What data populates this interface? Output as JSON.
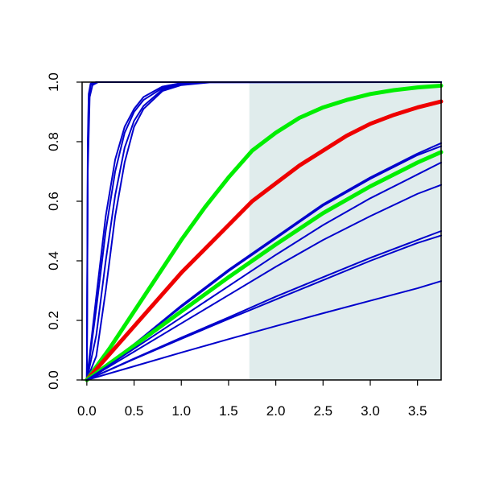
{
  "chart_data": {
    "type": "line",
    "title": "",
    "xlabel": "",
    "ylabel": "",
    "xlim": [
      -0.05,
      3.75
    ],
    "ylim": [
      0.0,
      1.0
    ],
    "x_ticks": [
      "0.0",
      "0.5",
      "1.0",
      "1.5",
      "2.0",
      "2.5",
      "3.0",
      "3.5"
    ],
    "y_ticks": [
      "0.0",
      "0.2",
      "0.4",
      "0.6",
      "0.8",
      "1.0"
    ],
    "grid": false,
    "legend": "none",
    "shaded_region": {
      "x_from": 1.72,
      "x_to": 3.75,
      "color": "#e0ecec"
    },
    "series": [
      {
        "color": "#0000cc",
        "width": 2,
        "points": [
          [
            0,
            0
          ],
          [
            0.01,
            0.8
          ],
          [
            0.02,
            0.96
          ],
          [
            0.04,
            0.995
          ],
          [
            0.1,
            1.0
          ],
          [
            3.75,
            1.0
          ]
        ]
      },
      {
        "color": "#0000cc",
        "width": 2,
        "points": [
          [
            0,
            0
          ],
          [
            0.01,
            0.75
          ],
          [
            0.02,
            0.94
          ],
          [
            0.04,
            0.99
          ],
          [
            0.1,
            1.0
          ],
          [
            3.75,
            1.0
          ]
        ]
      },
      {
        "color": "#0000cc",
        "width": 2,
        "points": [
          [
            0,
            0
          ],
          [
            0.01,
            0.7
          ],
          [
            0.03,
            0.95
          ],
          [
            0.06,
            0.99
          ],
          [
            0.12,
            1.0
          ],
          [
            3.75,
            1.0
          ]
        ]
      },
      {
        "color": "#0000cc",
        "width": 2,
        "points": [
          [
            0,
            0
          ],
          [
            0.1,
            0.28
          ],
          [
            0.2,
            0.55
          ],
          [
            0.3,
            0.74
          ],
          [
            0.4,
            0.85
          ],
          [
            0.5,
            0.91
          ],
          [
            0.6,
            0.95
          ],
          [
            0.8,
            0.985
          ],
          [
            1.0,
            0.997
          ],
          [
            1.2,
            1.0
          ],
          [
            3.75,
            1.0
          ]
        ]
      },
      {
        "color": "#0000cc",
        "width": 2,
        "points": [
          [
            0,
            0
          ],
          [
            0.1,
            0.24
          ],
          [
            0.2,
            0.5
          ],
          [
            0.3,
            0.7
          ],
          [
            0.4,
            0.83
          ],
          [
            0.5,
            0.9
          ],
          [
            0.6,
            0.94
          ],
          [
            0.8,
            0.98
          ],
          [
            1.0,
            0.995
          ],
          [
            1.3,
            1.0
          ],
          [
            3.75,
            1.0
          ]
        ]
      },
      {
        "color": "#0000cc",
        "width": 2,
        "points": [
          [
            0,
            0
          ],
          [
            0.1,
            0.15
          ],
          [
            0.2,
            0.4
          ],
          [
            0.3,
            0.62
          ],
          [
            0.4,
            0.78
          ],
          [
            0.5,
            0.87
          ],
          [
            0.6,
            0.92
          ],
          [
            0.8,
            0.975
          ],
          [
            1.0,
            0.993
          ],
          [
            1.3,
            1.0
          ],
          [
            3.75,
            1.0
          ]
        ]
      },
      {
        "color": "#0000cc",
        "width": 2,
        "points": [
          [
            0,
            0
          ],
          [
            0.1,
            0.08
          ],
          [
            0.2,
            0.3
          ],
          [
            0.3,
            0.55
          ],
          [
            0.4,
            0.73
          ],
          [
            0.5,
            0.85
          ],
          [
            0.6,
            0.91
          ],
          [
            0.8,
            0.97
          ],
          [
            1.0,
            0.99
          ],
          [
            1.3,
            0.999
          ],
          [
            3.75,
            1.0
          ]
        ]
      },
      {
        "color": "#00ee00",
        "width": 5,
        "points": [
          [
            0,
            0
          ],
          [
            0.25,
            0.11
          ],
          [
            0.5,
            0.23
          ],
          [
            0.75,
            0.35
          ],
          [
            1.0,
            0.47
          ],
          [
            1.25,
            0.58
          ],
          [
            1.5,
            0.68
          ],
          [
            1.75,
            0.77
          ],
          [
            2.0,
            0.83
          ],
          [
            2.25,
            0.88
          ],
          [
            2.5,
            0.915
          ],
          [
            2.75,
            0.94
          ],
          [
            3.0,
            0.96
          ],
          [
            3.25,
            0.973
          ],
          [
            3.5,
            0.982
          ],
          [
            3.75,
            0.988
          ]
        ]
      },
      {
        "color": "#ee0000",
        "width": 5,
        "points": [
          [
            0,
            0
          ],
          [
            0.25,
            0.09
          ],
          [
            0.5,
            0.18
          ],
          [
            0.75,
            0.27
          ],
          [
            1.0,
            0.36
          ],
          [
            1.25,
            0.44
          ],
          [
            1.5,
            0.52
          ],
          [
            1.75,
            0.6
          ],
          [
            2.0,
            0.66
          ],
          [
            2.25,
            0.72
          ],
          [
            2.5,
            0.77
          ],
          [
            2.75,
            0.82
          ],
          [
            3.0,
            0.86
          ],
          [
            3.25,
            0.89
          ],
          [
            3.5,
            0.915
          ],
          [
            3.75,
            0.935
          ]
        ]
      },
      {
        "color": "#0000cc",
        "width": 2,
        "points": [
          [
            0,
            0
          ],
          [
            0.5,
            0.12
          ],
          [
            1.0,
            0.25
          ],
          [
            1.5,
            0.37
          ],
          [
            2.0,
            0.48
          ],
          [
            2.5,
            0.59
          ],
          [
            3.0,
            0.68
          ],
          [
            3.5,
            0.76
          ],
          [
            3.75,
            0.795
          ]
        ]
      },
      {
        "color": "#0000cc",
        "width": 2,
        "points": [
          [
            0,
            0
          ],
          [
            0.5,
            0.12
          ],
          [
            1.0,
            0.245
          ],
          [
            1.5,
            0.365
          ],
          [
            2.0,
            0.475
          ],
          [
            2.5,
            0.585
          ],
          [
            3.0,
            0.675
          ],
          [
            3.5,
            0.755
          ],
          [
            3.75,
            0.785
          ]
        ]
      },
      {
        "color": "#00ee00",
        "width": 5,
        "points": [
          [
            0,
            0
          ],
          [
            0.5,
            0.115
          ],
          [
            1.0,
            0.23
          ],
          [
            1.5,
            0.345
          ],
          [
            2.0,
            0.455
          ],
          [
            2.5,
            0.56
          ],
          [
            3.0,
            0.65
          ],
          [
            3.5,
            0.73
          ],
          [
            3.75,
            0.765
          ]
        ]
      },
      {
        "color": "#0000cc",
        "width": 2,
        "points": [
          [
            0,
            0
          ],
          [
            0.5,
            0.105
          ],
          [
            1.0,
            0.21
          ],
          [
            1.5,
            0.315
          ],
          [
            2.0,
            0.42
          ],
          [
            2.5,
            0.52
          ],
          [
            3.0,
            0.61
          ],
          [
            3.5,
            0.69
          ],
          [
            3.75,
            0.73
          ]
        ]
      },
      {
        "color": "#0000cc",
        "width": 2,
        "points": [
          [
            0,
            0
          ],
          [
            0.5,
            0.095
          ],
          [
            1.0,
            0.19
          ],
          [
            1.5,
            0.285
          ],
          [
            2.0,
            0.38
          ],
          [
            2.5,
            0.47
          ],
          [
            3.0,
            0.55
          ],
          [
            3.5,
            0.625
          ],
          [
            3.75,
            0.655
          ]
        ]
      },
      {
        "color": "#0000cc",
        "width": 2,
        "points": [
          [
            0,
            0
          ],
          [
            0.5,
            0.072
          ],
          [
            1.0,
            0.142
          ],
          [
            1.5,
            0.21
          ],
          [
            2.0,
            0.28
          ],
          [
            2.5,
            0.345
          ],
          [
            3.0,
            0.41
          ],
          [
            3.5,
            0.47
          ],
          [
            3.75,
            0.5
          ]
        ]
      },
      {
        "color": "#0000cc",
        "width": 2,
        "points": [
          [
            0,
            0
          ],
          [
            0.5,
            0.07
          ],
          [
            1.0,
            0.138
          ],
          [
            1.5,
            0.205
          ],
          [
            2.0,
            0.27
          ],
          [
            2.5,
            0.335
          ],
          [
            3.0,
            0.4
          ],
          [
            3.5,
            0.46
          ],
          [
            3.75,
            0.485
          ]
        ]
      },
      {
        "color": "#0000cc",
        "width": 2,
        "points": [
          [
            0,
            0
          ],
          [
            0.5,
            0.046
          ],
          [
            1.0,
            0.092
          ],
          [
            1.5,
            0.137
          ],
          [
            2.0,
            0.181
          ],
          [
            2.5,
            0.224
          ],
          [
            3.0,
            0.266
          ],
          [
            3.5,
            0.308
          ],
          [
            3.75,
            0.332
          ]
        ]
      }
    ]
  }
}
